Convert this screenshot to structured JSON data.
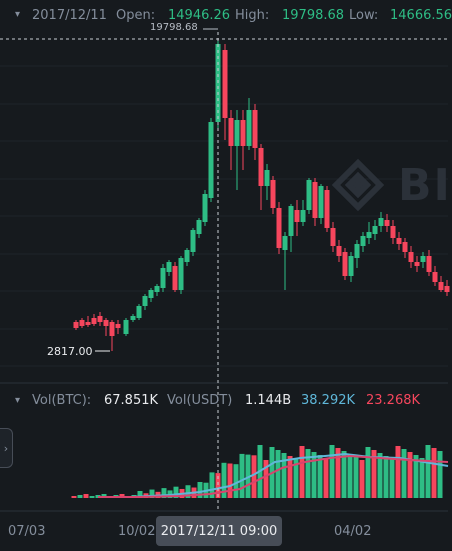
{
  "header": {
    "date": "2017/12/11",
    "open_label": "Open:",
    "open_value": "14946.26",
    "high_label": "High:",
    "high_value": "19798.68",
    "low_label": "Low:",
    "low_value": "14666.56"
  },
  "markers": {
    "high_price": "19798.68",
    "low_price": "2817.00"
  },
  "volume": {
    "vol_btc_label": "Vol(BTC):",
    "vol_btc_value": "67.851K",
    "vol_usdt_label": "Vol(USDT)",
    "vol_usdt_value": "1.144B",
    "ma1_value": "38.292K",
    "ma2_value": "23.268K"
  },
  "x_axis": {
    "ticks": [
      "07/03",
      "10/02",
      "04/02"
    ],
    "crosshair_label": "2017/12/11 09:00"
  },
  "watermark": "BI",
  "colors": {
    "up": "#2ebd85",
    "down": "#f6465d",
    "ma1": "#5fb7d9",
    "ma2": "#d9436d",
    "background": "#161a1e"
  }
}
